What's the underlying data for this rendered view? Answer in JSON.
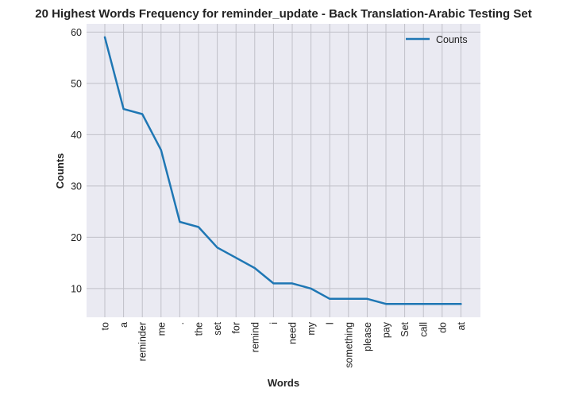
{
  "chart_data": {
    "type": "line",
    "title": "20 Highest Words Frequency for reminder_update - Back Translation-Arabic Testing Set",
    "xlabel": "Words",
    "ylabel": "Counts",
    "categories": [
      "to",
      "a",
      "reminder",
      "me",
      ".",
      "the",
      "set",
      "for",
      "remind",
      "i",
      "need",
      "my",
      "I",
      "something",
      "please",
      "pay",
      "Set",
      "call",
      "do",
      "at"
    ],
    "series": [
      {
        "name": "Counts",
        "values": [
          59,
          45,
          44,
          37,
          23,
          22,
          18,
          16,
          14,
          11,
          11,
          10,
          8,
          8,
          8,
          7,
          7,
          7,
          7,
          7
        ]
      }
    ],
    "yticks": [
      10,
      20,
      30,
      40,
      50,
      60
    ],
    "ylim": [
      4.4,
      61.6
    ],
    "grid": true,
    "legend_position": "top-right",
    "colors": {
      "line": "#1f77b4",
      "background": "#eaeaf2",
      "grid": "#c0c0c8"
    }
  }
}
